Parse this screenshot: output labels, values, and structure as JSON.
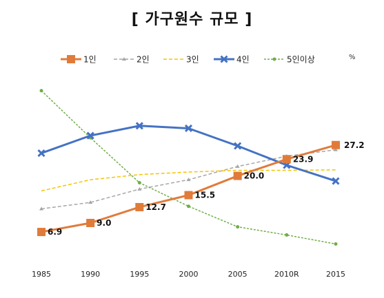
{
  "chart_data": {
    "type": "line",
    "title": "[ 가구원수 규모 ]",
    "unit_label": "%",
    "categories": [
      "1985",
      "1990",
      "1995",
      "2000",
      "2005",
      "2010R",
      "2015"
    ],
    "ylim": [
      0,
      45
    ],
    "grid": false,
    "legend_position": "top",
    "series": [
      {
        "name": "1인",
        "values": [
          6.9,
          9.0,
          12.7,
          15.5,
          20.0,
          23.9,
          27.2
        ],
        "color": "#E07B3A",
        "style": "solid",
        "marker": "square",
        "labels": [
          "6.9",
          "9.0",
          "12.7",
          "15.5",
          "20.0",
          "23.9",
          "27.2"
        ]
      },
      {
        "name": "2인",
        "values": [
          12.3,
          13.8,
          16.9,
          19.1,
          22.2,
          24.6,
          26.1
        ],
        "color": "#A6A6A6",
        "style": "dashed",
        "marker": "triangle"
      },
      {
        "name": "3인",
        "values": [
          16.5,
          19.1,
          20.3,
          20.9,
          21.3,
          21.3,
          21.4
        ],
        "color": "#F5C400",
        "style": "dashed",
        "marker": "none"
      },
      {
        "name": "4인",
        "values": [
          25.3,
          29.4,
          31.7,
          31.1,
          27.0,
          22.5,
          18.8
        ],
        "color": "#4472C4",
        "style": "solid",
        "marker": "x"
      },
      {
        "name": "5인이상",
        "values": [
          39.9,
          28.9,
          18.4,
          12.9,
          8.1,
          6.2,
          4.1
        ],
        "color": "#70AD47",
        "style": "dotted",
        "marker": "circle"
      }
    ]
  }
}
